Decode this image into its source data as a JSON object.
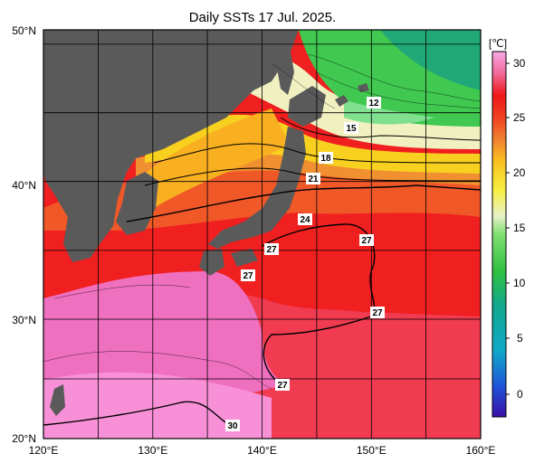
{
  "title": "Daily SSTs 17 Jul. 2025.",
  "map": {
    "lon_range": [
      120,
      160
    ],
    "lat_range": [
      20,
      50
    ],
    "x_ticks": [
      "120°E",
      "130°E",
      "140°E",
      "150°E",
      "160°E"
    ],
    "y_ticks": [
      "50°N",
      "40°N",
      "30°N",
      "20°N"
    ],
    "grid_step_degrees": 5,
    "land_color": "#5a5a5a"
  },
  "colorbar": {
    "unit_label": "[℃]",
    "ticks": [
      "30",
      "25",
      "20",
      "15",
      "10",
      "5",
      "0"
    ],
    "range": [
      -2,
      32
    ]
  },
  "contour_labels": [
    "12",
    "15",
    "18",
    "21",
    "24",
    "27",
    "27",
    "27",
    "27",
    "27",
    "30"
  ]
}
